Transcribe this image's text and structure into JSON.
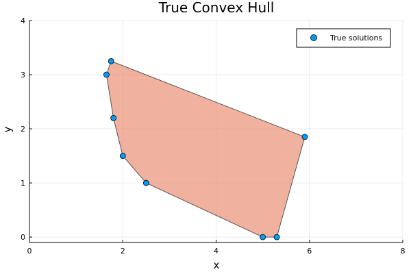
{
  "chart_data": {
    "type": "scatter",
    "title": "True Convex Hull",
    "xlabel": "x",
    "ylabel": "y",
    "xlim": [
      0,
      8
    ],
    "ylim": [
      -0.1,
      4
    ],
    "xticks": [
      0,
      2,
      4,
      6,
      8
    ],
    "yticks": [
      0,
      1,
      2,
      3,
      4
    ],
    "grid": true,
    "legend_position": "top-right",
    "hull": {
      "fill_color": "#e8896a",
      "fill_opacity": 0.65,
      "stroke_color": "#555555",
      "vertices": [
        {
          "x": 1.75,
          "y": 3.25
        },
        {
          "x": 5.9,
          "y": 1.85
        },
        {
          "x": 5.3,
          "y": 0.0
        },
        {
          "x": 5.0,
          "y": 0.0
        },
        {
          "x": 2.5,
          "y": 1.0
        },
        {
          "x": 2.0,
          "y": 1.5
        },
        {
          "x": 1.8,
          "y": 2.2
        },
        {
          "x": 1.65,
          "y": 3.0
        }
      ]
    },
    "series": [
      {
        "name": "True solutions",
        "color": "#009af9",
        "points": [
          {
            "x": 1.75,
            "y": 3.25
          },
          {
            "x": 1.65,
            "y": 3.0
          },
          {
            "x": 1.8,
            "y": 2.2
          },
          {
            "x": 2.0,
            "y": 1.5
          },
          {
            "x": 2.5,
            "y": 1.0
          },
          {
            "x": 5.0,
            "y": 0.0
          },
          {
            "x": 5.3,
            "y": 0.0
          },
          {
            "x": 5.9,
            "y": 1.85
          }
        ]
      }
    ]
  }
}
